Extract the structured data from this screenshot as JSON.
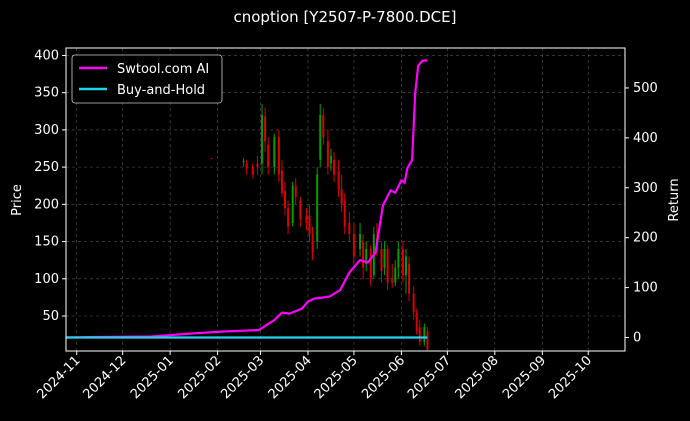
{
  "chart_data": {
    "type": "line",
    "title": "cnoption [Y2507-P-7800.DCE]",
    "ylabel": "Price",
    "y2label": "Return",
    "x_ticks": [
      "2024-11",
      "2024-12",
      "2025-01",
      "2025-02",
      "2025-03",
      "2025-04",
      "2025-05",
      "2025-06",
      "2025-07",
      "2025-08",
      "2025-09",
      "2025-10"
    ],
    "xlim": [
      "2024-10-25",
      "2025-10-25"
    ],
    "ylim": [
      3,
      410
    ],
    "yticks": [
      50,
      100,
      150,
      200,
      250,
      300,
      350,
      400
    ],
    "y2lim": [
      -27,
      580
    ],
    "y2ticks": [
      0,
      100,
      200,
      300,
      400,
      500
    ],
    "grid": true,
    "legend": {
      "placement": "top-left",
      "entries": [
        "Swtool.com AI",
        "Buy-and-Hold"
      ]
    },
    "colors": {
      "ai": "#ff00ff",
      "bh": "#22d3ee",
      "up": "#00a000",
      "down": "#e00000",
      "grid": "#555555"
    },
    "series": [
      {
        "name": "Swtool.com AI",
        "axis": "right",
        "points": [
          [
            "2024-10-25",
            0
          ],
          [
            "2024-11-15",
            1
          ],
          [
            "2024-12-20",
            2
          ],
          [
            "2025-01-15",
            8
          ],
          [
            "2025-02-05",
            12
          ],
          [
            "2025-02-28",
            15
          ],
          [
            "2025-03-05",
            25
          ],
          [
            "2025-03-10",
            35
          ],
          [
            "2025-03-15",
            50
          ],
          [
            "2025-03-20",
            48
          ],
          [
            "2025-03-28",
            58
          ],
          [
            "2025-04-01",
            72
          ],
          [
            "2025-04-05",
            78
          ],
          [
            "2025-04-15",
            82
          ],
          [
            "2025-04-22",
            95
          ],
          [
            "2025-04-28",
            130
          ],
          [
            "2025-05-05",
            155
          ],
          [
            "2025-05-10",
            150
          ],
          [
            "2025-05-15",
            170
          ],
          [
            "2025-05-20",
            265
          ],
          [
            "2025-05-25",
            295
          ],
          [
            "2025-05-28",
            290
          ],
          [
            "2025-06-01",
            315
          ],
          [
            "2025-06-03",
            310
          ],
          [
            "2025-06-05",
            340
          ],
          [
            "2025-06-08",
            355
          ],
          [
            "2025-06-10",
            490
          ],
          [
            "2025-06-12",
            545
          ],
          [
            "2025-06-15",
            555
          ],
          [
            "2025-06-18",
            555
          ]
        ]
      },
      {
        "name": "Buy-and-Hold",
        "axis": "right",
        "points": [
          [
            "2024-10-25",
            0
          ],
          [
            "2025-06-18",
            0
          ]
        ]
      }
    ],
    "candles": [
      [
        "2025-01-28",
        262,
        262,
        261,
        261
      ],
      [
        "2025-02-18",
        257,
        262,
        250,
        258
      ],
      [
        "2025-02-20",
        255,
        260,
        240,
        248
      ],
      [
        "2025-02-24",
        250,
        255,
        235,
        240
      ],
      [
        "2025-02-27",
        255,
        265,
        240,
        250
      ],
      [
        "2025-03-02",
        255,
        335,
        240,
        320
      ],
      [
        "2025-03-04",
        318,
        330,
        270,
        285
      ],
      [
        "2025-03-06",
        280,
        290,
        240,
        250
      ],
      [
        "2025-03-10",
        250,
        295,
        240,
        290
      ],
      [
        "2025-03-13",
        290,
        300,
        230,
        240
      ],
      [
        "2025-03-15",
        245,
        260,
        210,
        215
      ],
      [
        "2025-03-17",
        218,
        230,
        185,
        195
      ],
      [
        "2025-03-19",
        195,
        205,
        160,
        170
      ],
      [
        "2025-03-22",
        175,
        230,
        170,
        225
      ],
      [
        "2025-03-24",
        225,
        235,
        200,
        210
      ],
      [
        "2025-03-27",
        205,
        210,
        170,
        180
      ],
      [
        "2025-03-31",
        185,
        195,
        165,
        175
      ],
      [
        "2025-04-02",
        185,
        200,
        150,
        160
      ],
      [
        "2025-04-04",
        160,
        170,
        125,
        135
      ],
      [
        "2025-04-07",
        150,
        250,
        140,
        240
      ],
      [
        "2025-04-09",
        260,
        335,
        250,
        320
      ],
      [
        "2025-04-11",
        320,
        330,
        280,
        290
      ],
      [
        "2025-04-14",
        285,
        300,
        240,
        250
      ],
      [
        "2025-04-16",
        255,
        275,
        245,
        265
      ],
      [
        "2025-04-18",
        260,
        270,
        230,
        240
      ],
      [
        "2025-04-21",
        245,
        260,
        210,
        220
      ],
      [
        "2025-04-23",
        220,
        240,
        190,
        200
      ],
      [
        "2025-04-25",
        205,
        215,
        160,
        170
      ],
      [
        "2025-04-28",
        175,
        190,
        150,
        160
      ],
      [
        "2025-05-01",
        160,
        175,
        120,
        130
      ],
      [
        "2025-05-05",
        140,
        175,
        130,
        160
      ],
      [
        "2025-05-07",
        150,
        160,
        100,
        115
      ],
      [
        "2025-05-09",
        120,
        150,
        110,
        140
      ],
      [
        "2025-05-12",
        140,
        145,
        90,
        100
      ],
      [
        "2025-05-14",
        105,
        170,
        100,
        160
      ],
      [
        "2025-05-16",
        155,
        175,
        130,
        140
      ],
      [
        "2025-05-19",
        140,
        150,
        95,
        110
      ],
      [
        "2025-05-21",
        115,
        150,
        105,
        140
      ],
      [
        "2025-05-23",
        140,
        145,
        85,
        95
      ],
      [
        "2025-05-26",
        100,
        120,
        88,
        95
      ],
      [
        "2025-05-28",
        95,
        125,
        90,
        115
      ],
      [
        "2025-05-30",
        115,
        150,
        100,
        140
      ],
      [
        "2025-06-02",
        140,
        150,
        95,
        105
      ],
      [
        "2025-06-04",
        105,
        140,
        80,
        130
      ],
      [
        "2025-06-06",
        120,
        130,
        70,
        80
      ],
      [
        "2025-06-09",
        80,
        90,
        45,
        55
      ],
      [
        "2025-06-11",
        55,
        60,
        25,
        30
      ],
      [
        "2025-06-13",
        35,
        45,
        10,
        15
      ],
      [
        "2025-06-16",
        15,
        40,
        10,
        35
      ],
      [
        "2025-06-18",
        30,
        35,
        3,
        5
      ]
    ]
  }
}
